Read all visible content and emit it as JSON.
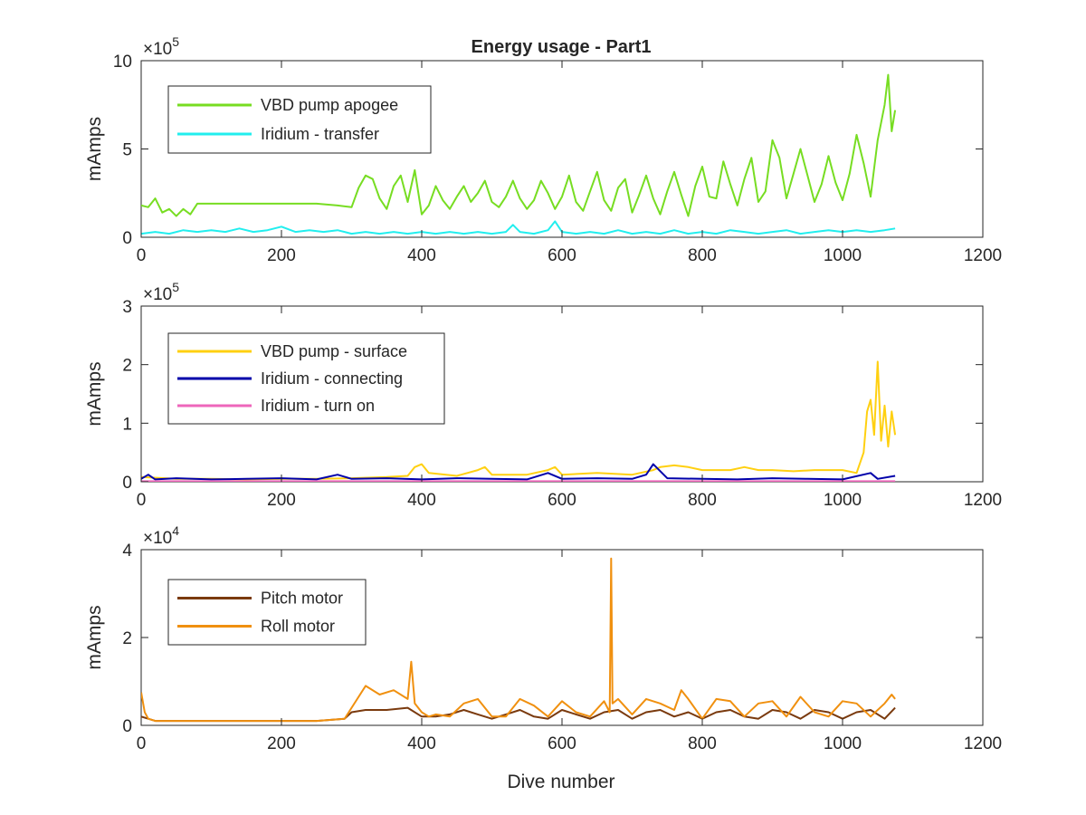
{
  "figure": {
    "title": "Energy usage - Part1",
    "xlabel": "Dive number"
  },
  "chart_data": [
    {
      "type": "line",
      "title": "Energy usage - Part1",
      "xlabel": "",
      "ylabel": "mAmps",
      "xlim": [
        0,
        1200
      ],
      "ylim": [
        0,
        10
      ],
      "xticks": [
        0,
        200,
        400,
        600,
        800,
        1000,
        1200
      ],
      "yticks": [
        0,
        5,
        10
      ],
      "multiplier": {
        "base": "10",
        "exp": "5"
      },
      "legend": "top-left",
      "series": [
        {
          "name": "VBD pump apogee",
          "color": "#77dd22",
          "x": [
            0,
            10,
            20,
            30,
            40,
            50,
            60,
            70,
            80,
            100,
            150,
            200,
            250,
            280,
            300,
            310,
            320,
            330,
            340,
            350,
            360,
            370,
            380,
            390,
            400,
            410,
            420,
            430,
            440,
            450,
            460,
            470,
            480,
            490,
            500,
            510,
            520,
            530,
            540,
            550,
            560,
            570,
            580,
            590,
            600,
            610,
            620,
            630,
            640,
            650,
            660,
            670,
            680,
            690,
            700,
            710,
            720,
            730,
            740,
            750,
            760,
            770,
            780,
            790,
            800,
            810,
            820,
            830,
            840,
            850,
            860,
            870,
            880,
            890,
            900,
            910,
            920,
            930,
            940,
            950,
            960,
            970,
            980,
            990,
            1000,
            1010,
            1020,
            1030,
            1040,
            1050,
            1060,
            1065,
            1070,
            1075
          ],
          "values": [
            1.8,
            1.7,
            2.2,
            1.4,
            1.6,
            1.2,
            1.6,
            1.3,
            1.9,
            1.9,
            1.9,
            1.9,
            1.9,
            1.8,
            1.7,
            2.8,
            3.5,
            3.3,
            2.2,
            1.6,
            2.9,
            3.5,
            2.0,
            3.8,
            1.3,
            1.8,
            2.9,
            2.1,
            1.6,
            2.3,
            2.9,
            2.0,
            2.5,
            3.2,
            2.0,
            1.7,
            2.3,
            3.2,
            2.2,
            1.6,
            2.1,
            3.2,
            2.5,
            1.6,
            2.3,
            3.5,
            2.0,
            1.5,
            2.6,
            3.7,
            2.1,
            1.5,
            2.8,
            3.3,
            1.4,
            2.4,
            3.5,
            2.2,
            1.3,
            2.6,
            3.7,
            2.4,
            1.2,
            2.9,
            4.0,
            2.3,
            2.2,
            4.3,
            3.0,
            1.8,
            3.3,
            4.5,
            2.0,
            2.6,
            5.5,
            4.5,
            2.2,
            3.6,
            5.0,
            3.5,
            2.0,
            3.0,
            4.6,
            3.1,
            2.1,
            3.6,
            5.8,
            4.2,
            2.3,
            5.5,
            7.5,
            9.2,
            6.0,
            7.2
          ]
        },
        {
          "name": "Iridium - transfer",
          "color": "#22eeee",
          "x": [
            0,
            20,
            40,
            60,
            80,
            100,
            120,
            140,
            160,
            180,
            200,
            220,
            240,
            260,
            280,
            300,
            320,
            340,
            360,
            380,
            400,
            420,
            440,
            460,
            480,
            500,
            520,
            530,
            540,
            560,
            580,
            590,
            600,
            620,
            640,
            660,
            680,
            700,
            720,
            740,
            760,
            780,
            800,
            820,
            840,
            860,
            880,
            900,
            920,
            940,
            960,
            980,
            1000,
            1020,
            1040,
            1060,
            1075
          ],
          "values": [
            0.2,
            0.3,
            0.2,
            0.4,
            0.3,
            0.4,
            0.3,
            0.5,
            0.3,
            0.4,
            0.6,
            0.3,
            0.4,
            0.3,
            0.4,
            0.2,
            0.3,
            0.2,
            0.3,
            0.2,
            0.3,
            0.2,
            0.3,
            0.2,
            0.3,
            0.2,
            0.3,
            0.7,
            0.3,
            0.2,
            0.4,
            0.9,
            0.3,
            0.2,
            0.3,
            0.2,
            0.4,
            0.2,
            0.3,
            0.2,
            0.4,
            0.2,
            0.3,
            0.2,
            0.4,
            0.3,
            0.2,
            0.3,
            0.4,
            0.2,
            0.3,
            0.4,
            0.3,
            0.4,
            0.3,
            0.4,
            0.5
          ]
        }
      ]
    },
    {
      "type": "line",
      "title": "",
      "xlabel": "",
      "ylabel": "mAmps",
      "xlim": [
        0,
        1200
      ],
      "ylim": [
        0,
        3
      ],
      "xticks": [
        0,
        200,
        400,
        600,
        800,
        1000,
        1200
      ],
      "yticks": [
        0,
        1,
        2,
        3
      ],
      "multiplier": {
        "base": "10",
        "exp": "5"
      },
      "legend": "top-left",
      "series": [
        {
          "name": "VBD pump - surface",
          "color": "#ffd011",
          "x": [
            0,
            50,
            100,
            150,
            200,
            250,
            300,
            350,
            380,
            390,
            400,
            410,
            450,
            480,
            490,
            500,
            550,
            580,
            590,
            600,
            650,
            700,
            730,
            740,
            760,
            780,
            800,
            820,
            840,
            860,
            880,
            900,
            930,
            960,
            1000,
            1020,
            1030,
            1035,
            1040,
            1045,
            1050,
            1055,
            1060,
            1065,
            1070,
            1075
          ],
          "values": [
            0.08,
            0.05,
            0.05,
            0.04,
            0.05,
            0.05,
            0.06,
            0.08,
            0.1,
            0.25,
            0.3,
            0.15,
            0.1,
            0.2,
            0.25,
            0.12,
            0.12,
            0.2,
            0.25,
            0.12,
            0.15,
            0.12,
            0.2,
            0.25,
            0.28,
            0.25,
            0.2,
            0.2,
            0.2,
            0.25,
            0.2,
            0.2,
            0.18,
            0.2,
            0.2,
            0.15,
            0.5,
            1.2,
            1.4,
            0.8,
            2.05,
            0.7,
            1.3,
            0.6,
            1.2,
            0.8
          ]
        },
        {
          "name": "Iridium - connecting",
          "color": "#0000aa",
          "x": [
            0,
            10,
            20,
            50,
            100,
            150,
            200,
            250,
            280,
            300,
            350,
            400,
            450,
            500,
            550,
            580,
            600,
            650,
            700,
            720,
            730,
            750,
            800,
            850,
            900,
            950,
            1000,
            1040,
            1050,
            1075
          ],
          "values": [
            0.05,
            0.12,
            0.04,
            0.06,
            0.04,
            0.05,
            0.06,
            0.04,
            0.12,
            0.05,
            0.06,
            0.04,
            0.06,
            0.05,
            0.04,
            0.15,
            0.05,
            0.06,
            0.05,
            0.12,
            0.3,
            0.06,
            0.05,
            0.04,
            0.06,
            0.05,
            0.04,
            0.15,
            0.05,
            0.1
          ]
        },
        {
          "name": "Iridium - turn on",
          "color": "#ee66bb",
          "x": [
            0,
            200,
            400,
            600,
            800,
            1000,
            1075
          ],
          "values": [
            0.01,
            0.01,
            0.01,
            0.01,
            0.01,
            0.01,
            0.01
          ]
        }
      ]
    },
    {
      "type": "line",
      "title": "",
      "xlabel": "Dive number",
      "ylabel": "mAmps",
      "xlim": [
        0,
        1200
      ],
      "ylim": [
        0,
        4
      ],
      "xticks": [
        0,
        200,
        400,
        600,
        800,
        1000,
        1200
      ],
      "yticks": [
        0,
        2,
        4
      ],
      "multiplier": {
        "base": "10",
        "exp": "4"
      },
      "legend": "top-left",
      "series": [
        {
          "name": "Pitch motor",
          "color": "#7a3a0e",
          "x": [
            0,
            10,
            20,
            50,
            100,
            150,
            200,
            250,
            290,
            300,
            320,
            350,
            380,
            400,
            420,
            440,
            460,
            480,
            500,
            520,
            540,
            560,
            580,
            600,
            620,
            640,
            660,
            680,
            700,
            720,
            740,
            760,
            780,
            800,
            820,
            840,
            860,
            880,
            900,
            920,
            940,
            960,
            980,
            1000,
            1020,
            1040,
            1060,
            1075
          ],
          "values": [
            0.2,
            0.15,
            0.1,
            0.1,
            0.1,
            0.1,
            0.1,
            0.1,
            0.15,
            0.3,
            0.35,
            0.35,
            0.4,
            0.2,
            0.2,
            0.25,
            0.35,
            0.25,
            0.15,
            0.25,
            0.35,
            0.2,
            0.15,
            0.35,
            0.25,
            0.15,
            0.3,
            0.35,
            0.15,
            0.3,
            0.35,
            0.2,
            0.3,
            0.15,
            0.3,
            0.35,
            0.2,
            0.15,
            0.35,
            0.3,
            0.15,
            0.35,
            0.3,
            0.15,
            0.3,
            0.35,
            0.15,
            0.4
          ]
        },
        {
          "name": "Roll motor",
          "color": "#f0900f",
          "x": [
            0,
            5,
            10,
            20,
            50,
            100,
            150,
            200,
            250,
            290,
            300,
            320,
            340,
            360,
            380,
            385,
            390,
            400,
            410,
            420,
            440,
            460,
            480,
            500,
            520,
            540,
            560,
            580,
            600,
            620,
            640,
            660,
            668,
            670,
            672,
            680,
            700,
            720,
            740,
            760,
            770,
            780,
            800,
            820,
            840,
            860,
            880,
            900,
            920,
            940,
            960,
            980,
            1000,
            1020,
            1040,
            1060,
            1070,
            1075
          ],
          "values": [
            0.75,
            0.3,
            0.15,
            0.1,
            0.1,
            0.1,
            0.1,
            0.1,
            0.1,
            0.15,
            0.4,
            0.9,
            0.7,
            0.8,
            0.6,
            1.45,
            0.5,
            0.3,
            0.2,
            0.25,
            0.2,
            0.5,
            0.6,
            0.2,
            0.2,
            0.6,
            0.45,
            0.2,
            0.55,
            0.3,
            0.2,
            0.55,
            0.3,
            3.8,
            0.5,
            0.6,
            0.25,
            0.6,
            0.5,
            0.35,
            0.8,
            0.6,
            0.15,
            0.6,
            0.55,
            0.2,
            0.5,
            0.55,
            0.2,
            0.65,
            0.3,
            0.2,
            0.55,
            0.5,
            0.2,
            0.5,
            0.7,
            0.6
          ]
        }
      ]
    }
  ]
}
